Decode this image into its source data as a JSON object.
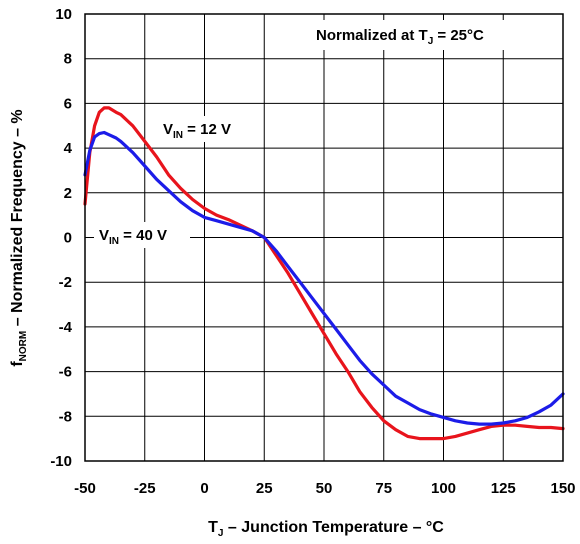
{
  "chart_data": {
    "type": "line",
    "xlabel": "T",
    "xlabel_sub": "J",
    "xlabel_rest": " – Junction Temperature – °C",
    "ylabel": "f",
    "ylabel_sub": "NORM",
    "ylabel_rest": " – Normalized Frequency – %",
    "xlim": [
      -50,
      150
    ],
    "ylim": [
      -10,
      10
    ],
    "xticks": [
      "-50",
      "-25",
      "0",
      "25",
      "50",
      "75",
      "100",
      "125",
      "150"
    ],
    "yticks": [
      "10",
      "8",
      "6",
      "4",
      "2",
      "0",
      "-2",
      "-4",
      "-6",
      "-8",
      "-10"
    ],
    "grid": true,
    "annotation": {
      "text": "Normalized at T",
      "sub": "J",
      "rest": " = 25°C"
    },
    "series": [
      {
        "name": "V",
        "name_sub": "IN",
        "name_rest": " = 12 V",
        "color": "#e8141c",
        "x": [
          -50,
          -48,
          -46,
          -44,
          -42,
          -40,
          -37,
          -35,
          -30,
          -25,
          -20,
          -15,
          -10,
          -5,
          0,
          5,
          10,
          15,
          20,
          25,
          30,
          35,
          40,
          45,
          50,
          55,
          60,
          65,
          70,
          75,
          80,
          85,
          90,
          95,
          100,
          105,
          110,
          115,
          120,
          125,
          130,
          135,
          140,
          145,
          150
        ],
        "y": [
          1.5,
          3.8,
          5.0,
          5.6,
          5.8,
          5.8,
          5.6,
          5.5,
          5.0,
          4.3,
          3.6,
          2.8,
          2.2,
          1.7,
          1.3,
          1.0,
          0.8,
          0.55,
          0.3,
          0.0,
          -0.8,
          -1.6,
          -2.5,
          -3.4,
          -4.3,
          -5.2,
          -6.0,
          -6.9,
          -7.6,
          -8.2,
          -8.6,
          -8.9,
          -9.0,
          -9.0,
          -9.0,
          -8.9,
          -8.75,
          -8.6,
          -8.45,
          -8.4,
          -8.4,
          -8.45,
          -8.5,
          -8.5,
          -8.55
        ]
      },
      {
        "name": "V",
        "name_sub": "IN",
        "name_rest": " = 40 V",
        "color": "#1c1ce8",
        "x": [
          -50,
          -48,
          -46,
          -44,
          -42,
          -40,
          -37,
          -35,
          -30,
          -25,
          -20,
          -15,
          -10,
          -5,
          0,
          5,
          10,
          15,
          20,
          25,
          30,
          35,
          40,
          45,
          50,
          55,
          60,
          65,
          70,
          75,
          80,
          85,
          90,
          95,
          100,
          105,
          110,
          115,
          120,
          125,
          130,
          135,
          140,
          145,
          150
        ],
        "y": [
          2.8,
          3.9,
          4.5,
          4.65,
          4.7,
          4.6,
          4.45,
          4.3,
          3.8,
          3.2,
          2.6,
          2.1,
          1.6,
          1.2,
          0.9,
          0.75,
          0.6,
          0.45,
          0.3,
          0.0,
          -0.6,
          -1.3,
          -2.0,
          -2.7,
          -3.4,
          -4.1,
          -4.8,
          -5.5,
          -6.1,
          -6.6,
          -7.1,
          -7.4,
          -7.7,
          -7.9,
          -8.05,
          -8.2,
          -8.3,
          -8.35,
          -8.35,
          -8.3,
          -8.2,
          -8.05,
          -7.8,
          -7.5,
          -7.0
        ]
      }
    ]
  }
}
